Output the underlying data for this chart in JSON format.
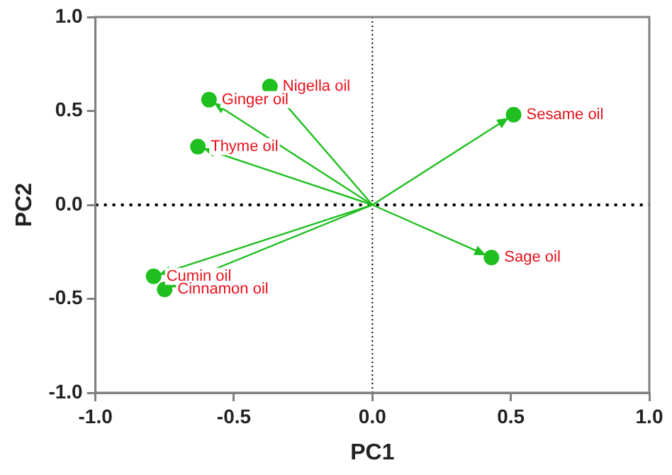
{
  "chart_data": {
    "type": "scatter",
    "xlabel": "PC1",
    "ylabel": "PC2",
    "xlim": [
      -1,
      1
    ],
    "ylim": [
      -1,
      1
    ],
    "xticks": [
      {
        "value": -1,
        "label": "-1.0"
      },
      {
        "value": -0.5,
        "label": "-0.5"
      },
      {
        "value": 0,
        "label": "0.0"
      },
      {
        "value": 0.5,
        "label": "0.5"
      },
      {
        "value": 1,
        "label": "1.0"
      }
    ],
    "yticks": [
      {
        "value": -1,
        "label": "-1.0"
      },
      {
        "value": -0.5,
        "label": "-0.5"
      },
      {
        "value": 0,
        "label": "0.0"
      },
      {
        "value": 0.5,
        "label": "0.5"
      },
      {
        "value": 1,
        "label": "1.0"
      }
    ],
    "grid": false,
    "marker": "circle",
    "ref_lines": [
      {
        "axis": "y",
        "value": 0,
        "line_style": "dotted",
        "color": "#000000"
      },
      {
        "axis": "x",
        "value": 0,
        "line_style": "dotted",
        "color": "#000000"
      }
    ],
    "series": [
      {
        "color": "#1fbf1f",
        "x": [
          -0.37,
          -0.59,
          -0.63,
          0.51,
          0.43,
          -0.79,
          -0.75
        ],
        "values": [
          0.63,
          0.56,
          0.31,
          0.48,
          -0.28,
          -0.38,
          -0.45
        ]
      }
    ],
    "annotations": [
      {
        "text": "Nigella oil",
        "x": -0.37,
        "y": 0.63
      },
      {
        "text": "Ginger oil",
        "x": -0.59,
        "y": 0.56
      },
      {
        "text": "Thyme oil",
        "x": -0.63,
        "y": 0.31
      },
      {
        "text": "Sesame oil",
        "x": 0.51,
        "y": 0.48
      },
      {
        "text": "Sage oil",
        "x": 0.43,
        "y": -0.28
      },
      {
        "text": "Cumin oil",
        "x": -0.79,
        "y": -0.38
      },
      {
        "text": "Cinnamon oil",
        "x": -0.75,
        "y": -0.45
      }
    ]
  }
}
